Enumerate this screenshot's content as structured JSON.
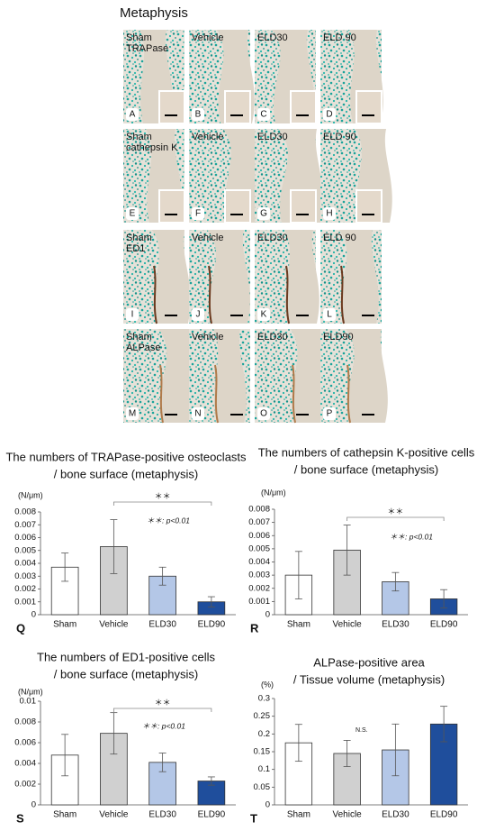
{
  "micrographs": {
    "title": "Metaphysis",
    "rows": [
      {
        "panels": [
          {
            "label": [
              "Sham",
              "TRAPase"
            ],
            "letter": "A"
          },
          {
            "label": [
              "Vehicle"
            ],
            "letter": "B"
          },
          {
            "label": [
              "ELD30"
            ],
            "letter": "C"
          },
          {
            "label": [
              "ELD 90"
            ],
            "letter": "D"
          }
        ]
      },
      {
        "panels": [
          {
            "label": [
              "Sham",
              "cathepsin K"
            ],
            "letter": "E"
          },
          {
            "label": [
              "Vehicle"
            ],
            "letter": "F"
          },
          {
            "label": [
              "ELD30"
            ],
            "letter": "G"
          },
          {
            "label": [
              "ELD 90"
            ],
            "letter": "H"
          }
        ]
      },
      {
        "panels": [
          {
            "label": [
              "Sham",
              "ED1"
            ],
            "letter": "I"
          },
          {
            "label": [
              "Vehicle"
            ],
            "letter": "J"
          },
          {
            "label": [
              "ELD30"
            ],
            "letter": "K"
          },
          {
            "label": [
              "ELD 90"
            ],
            "letter": "L"
          }
        ]
      },
      {
        "panels": [
          {
            "label": [
              "Sham",
              "ALPase"
            ],
            "letter": "M"
          },
          {
            "label": [
              "Vehicle"
            ],
            "letter": "N"
          },
          {
            "label": [
              "ELD30"
            ],
            "letter": "O"
          },
          {
            "label": [
              "ELD90"
            ],
            "letter": "P"
          }
        ]
      }
    ]
  },
  "chart_data": [
    {
      "type": "bar",
      "title": [
        "The numbers of TRAPase-positive osteoclasts",
        "/ bone surface (metaphysis)"
      ],
      "y_label": "(N/μm)",
      "panel": "Q",
      "categories": [
        "Sham",
        "Vehicle",
        "ELD30",
        "ELD90"
      ],
      "values": [
        0.0037,
        0.0053,
        0.003,
        0.001
      ],
      "errors": [
        0.0011,
        0.0021,
        0.0007,
        0.0004
      ],
      "colors": [
        "#ffffff",
        "#d0d0d0",
        "#b4c7e7",
        "#1f4e9c"
      ],
      "ylim": [
        0,
        0.008
      ],
      "yticks": [
        0,
        0.001,
        0.002,
        0.003,
        0.004,
        0.005,
        0.006,
        0.007,
        0.008
      ],
      "annotations": [
        "＊＊",
        "＊＊: p<0.01"
      ]
    },
    {
      "type": "bar",
      "title": [
        "The numbers of cathepsin K-positive cells",
        "/ bone surface (metaphysis)"
      ],
      "y_label": "(N/μm)",
      "panel": "R",
      "categories": [
        "Sham",
        "Vehicle",
        "ELD30",
        "ELD90"
      ],
      "values": [
        0.003,
        0.0049,
        0.0025,
        0.0012
      ],
      "errors": [
        0.0018,
        0.0019,
        0.0007,
        0.0007
      ],
      "colors": [
        "#ffffff",
        "#d0d0d0",
        "#b4c7e7",
        "#1f4e9c"
      ],
      "ylim": [
        0,
        0.008
      ],
      "yticks": [
        0,
        0.001,
        0.002,
        0.003,
        0.004,
        0.005,
        0.006,
        0.007,
        0.008
      ],
      "annotations": [
        "＊＊",
        "＊＊: p<0.01"
      ]
    },
    {
      "type": "bar",
      "title": [
        "The numbers of ED1-positive cells",
        "/ bone surface (metaphysis)"
      ],
      "y_label": "(N/μm)",
      "panel": "S",
      "categories": [
        "Sham",
        "Vehicle",
        "ELD30",
        "ELD90"
      ],
      "values": [
        0.0048,
        0.0069,
        0.0041,
        0.0023
      ],
      "errors": [
        0.002,
        0.002,
        0.0009,
        0.0004
      ],
      "colors": [
        "#ffffff",
        "#d0d0d0",
        "#b4c7e7",
        "#1f4e9c"
      ],
      "ylim": [
        0,
        0.01
      ],
      "yticks": [
        0,
        0.002,
        0.004,
        0.006,
        0.008,
        0.01
      ],
      "annotations": [
        "＊＊",
        "＊＊: p<0.01"
      ]
    },
    {
      "type": "bar",
      "title": [
        "ALPase-positive area",
        "/ Tissue volume (metaphysis)"
      ],
      "y_label": "(%)",
      "panel": "T",
      "categories": [
        "Sham",
        "Vehicle",
        "ELD30",
        "ELD90"
      ],
      "values": [
        0.175,
        0.145,
        0.155,
        0.228
      ],
      "errors": [
        0.052,
        0.037,
        0.073,
        0.05
      ],
      "colors": [
        "#ffffff",
        "#d0d0d0",
        "#b4c7e7",
        "#1f4e9c"
      ],
      "ylim": [
        0,
        0.3
      ],
      "yticks": [
        0,
        0.05,
        0.1,
        0.15,
        0.2,
        0.25,
        0.3
      ],
      "annotations": [
        "N.S."
      ]
    }
  ]
}
